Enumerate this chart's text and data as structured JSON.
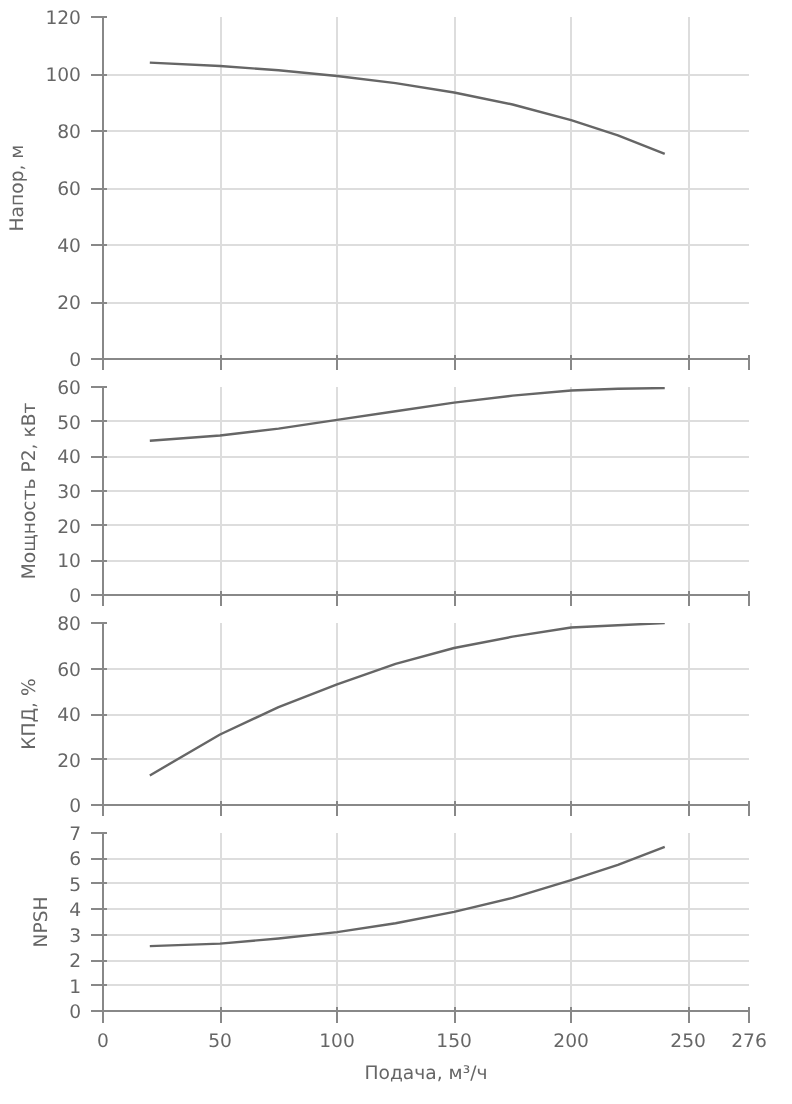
{
  "chart_data": [
    {
      "type": "line",
      "ylabel": "Напор, м",
      "x": [
        20,
        50,
        75,
        100,
        125,
        150,
        175,
        200,
        220,
        240
      ],
      "values": [
        104,
        102.8,
        101.3,
        99.3,
        96.8,
        93.5,
        89.3,
        83.8,
        78.5,
        72
      ],
      "color": "#666666",
      "xlim": [
        0,
        276
      ],
      "xticks": [
        0,
        50,
        100,
        150,
        200,
        250,
        276
      ],
      "ylim": [
        0,
        120
      ],
      "yticks": [
        0,
        20,
        40,
        60,
        80,
        100,
        120
      ],
      "grid": true,
      "tick_labels": "y"
    },
    {
      "type": "line",
      "ylabel": "Мощность P2, кВт",
      "x": [
        20,
        50,
        75,
        100,
        125,
        150,
        175,
        200,
        220,
        240
      ],
      "values": [
        44.5,
        46,
        48,
        50.5,
        53,
        55.5,
        57.5,
        59,
        59.5,
        59.7
      ],
      "color": "#666666",
      "xlim": [
        0,
        276
      ],
      "xticks": [
        0,
        50,
        100,
        150,
        200,
        250,
        276
      ],
      "ylim": [
        0,
        60
      ],
      "yticks": [
        0,
        10,
        20,
        30,
        40,
        50,
        60
      ],
      "grid": true,
      "tick_labels": "y"
    },
    {
      "type": "line",
      "ylabel": "КПД, %",
      "x": [
        20,
        50,
        75,
        100,
        125,
        150,
        175,
        200,
        220,
        240
      ],
      "values": [
        13,
        31,
        43,
        53,
        62,
        69,
        74,
        78,
        79,
        80
      ],
      "color": "#666666",
      "xlim": [
        0,
        276
      ],
      "xticks": [
        0,
        50,
        100,
        150,
        200,
        250,
        276
      ],
      "ylim": [
        0,
        80
      ],
      "yticks": [
        0,
        20,
        40,
        60,
        80
      ],
      "grid": true,
      "tick_labels": "y"
    },
    {
      "type": "line",
      "ylabel": "NPSH",
      "xlabel": "Подача, м³/ч",
      "x": [
        20,
        50,
        75,
        100,
        125,
        150,
        175,
        200,
        220,
        240
      ],
      "values": [
        2.55,
        2.65,
        2.85,
        3.1,
        3.45,
        3.9,
        4.45,
        5.15,
        5.75,
        6.45
      ],
      "color": "#666666",
      "xlim": [
        0,
        276
      ],
      "xticks": [
        0,
        50,
        100,
        150,
        200,
        250,
        276
      ],
      "ylim": [
        0,
        7
      ],
      "yticks": [
        0,
        1,
        2,
        3,
        4,
        5,
        6,
        7
      ],
      "grid": true
    }
  ]
}
